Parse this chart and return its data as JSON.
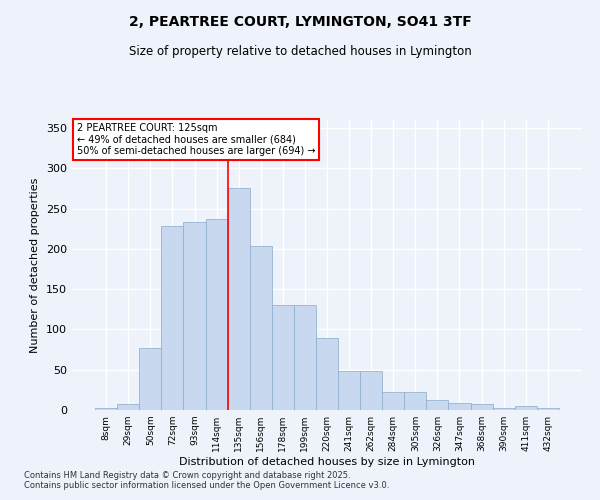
{
  "title_line1": "2, PEARTREE COURT, LYMINGTON, SO41 3TF",
  "title_line2": "Size of property relative to detached houses in Lymington",
  "xlabel": "Distribution of detached houses by size in Lymington",
  "ylabel": "Number of detached properties",
  "bar_color": "#c8d8ee",
  "bar_edge_color": "#8aabcc",
  "categories": [
    "8sqm",
    "29sqm",
    "50sqm",
    "72sqm",
    "93sqm",
    "114sqm",
    "135sqm",
    "156sqm",
    "178sqm",
    "199sqm",
    "220sqm",
    "241sqm",
    "262sqm",
    "284sqm",
    "305sqm",
    "326sqm",
    "347sqm",
    "368sqm",
    "390sqm",
    "411sqm",
    "432sqm"
  ],
  "values": [
    3,
    7,
    77,
    228,
    233,
    237,
    275,
    203,
    130,
    130,
    90,
    48,
    48,
    22,
    22,
    12,
    9,
    7,
    3,
    5,
    3
  ],
  "ylim": [
    0,
    360
  ],
  "yticks": [
    0,
    50,
    100,
    150,
    200,
    250,
    300,
    350
  ],
  "vline_x_index": 5.5,
  "vline_color": "red",
  "annotation_line1": "2 PEARTREE COURT: 125sqm",
  "annotation_line2": "← 49% of detached houses are smaller (684)",
  "annotation_line3": "50% of semi-detached houses are larger (694) →",
  "annotation_box_color": "white",
  "annotation_box_edge": "red",
  "bg_color": "#eef2fa",
  "grid_color": "white",
  "footnote1": "Contains HM Land Registry data © Crown copyright and database right 2025.",
  "footnote2": "Contains public sector information licensed under the Open Government Licence v3.0."
}
